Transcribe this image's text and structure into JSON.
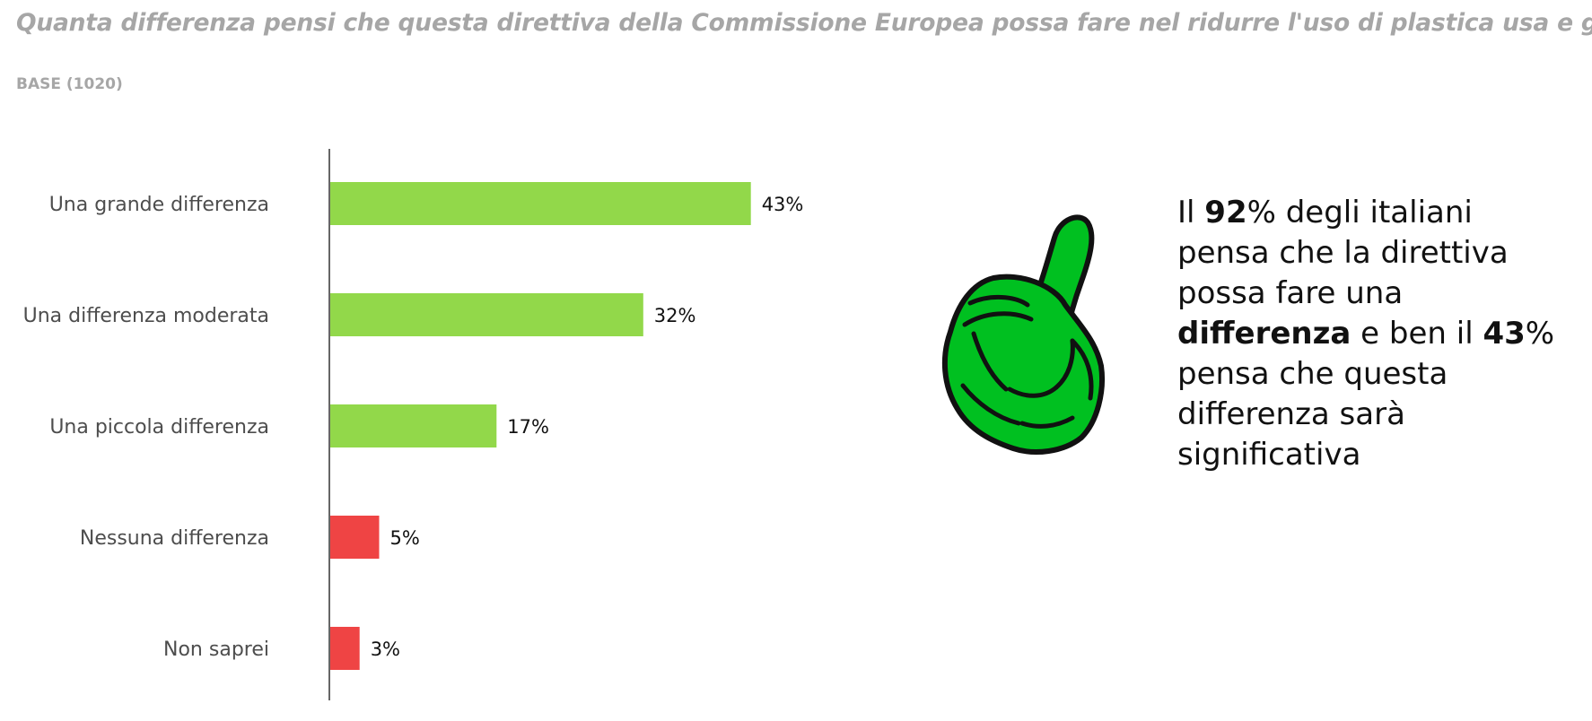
{
  "title": "Quanta differenza pensi che questa direttiva della Commissione Europea possa fare nel ridurre l'uso di plastica usa e getta?",
  "base": "BASE (1020)",
  "chart_data": {
    "type": "bar",
    "orientation": "horizontal",
    "title": "Quanta differenza pensi che questa direttiva della Commissione Europea possa fare nel ridurre l'uso di plastica usa e getta?",
    "categories": [
      "Una grande differenza",
      "Una differenza moderata",
      "Una piccola differenza",
      "Nessuna differenza",
      "Non saprei"
    ],
    "values": [
      43,
      32,
      17,
      5,
      3
    ],
    "value_labels": [
      "43%",
      "32%",
      "17%",
      "5%",
      "3%"
    ],
    "bar_colors": [
      "#92d84a",
      "#92d84a",
      "#92d84a",
      "#ef4444",
      "#ef4444"
    ],
    "xlabel": "",
    "ylabel": "",
    "xlim": [
      0,
      50
    ],
    "grid": false,
    "legend": "none"
  },
  "callout": {
    "p1": "Il ",
    "b1": "92",
    "p2": "% degli italiani pensa che la direttiva possa fare una ",
    "b2": "differenza",
    "p3": " e ben il ",
    "b3": "43",
    "p4": "% pensa che questa differenza sarà significativa"
  },
  "colors": {
    "positive": "#92d84a",
    "negative": "#ef4444",
    "thumb_fill": "#00c020",
    "muted_text": "#a6a6a6"
  },
  "icon": "thumbs-up-icon"
}
